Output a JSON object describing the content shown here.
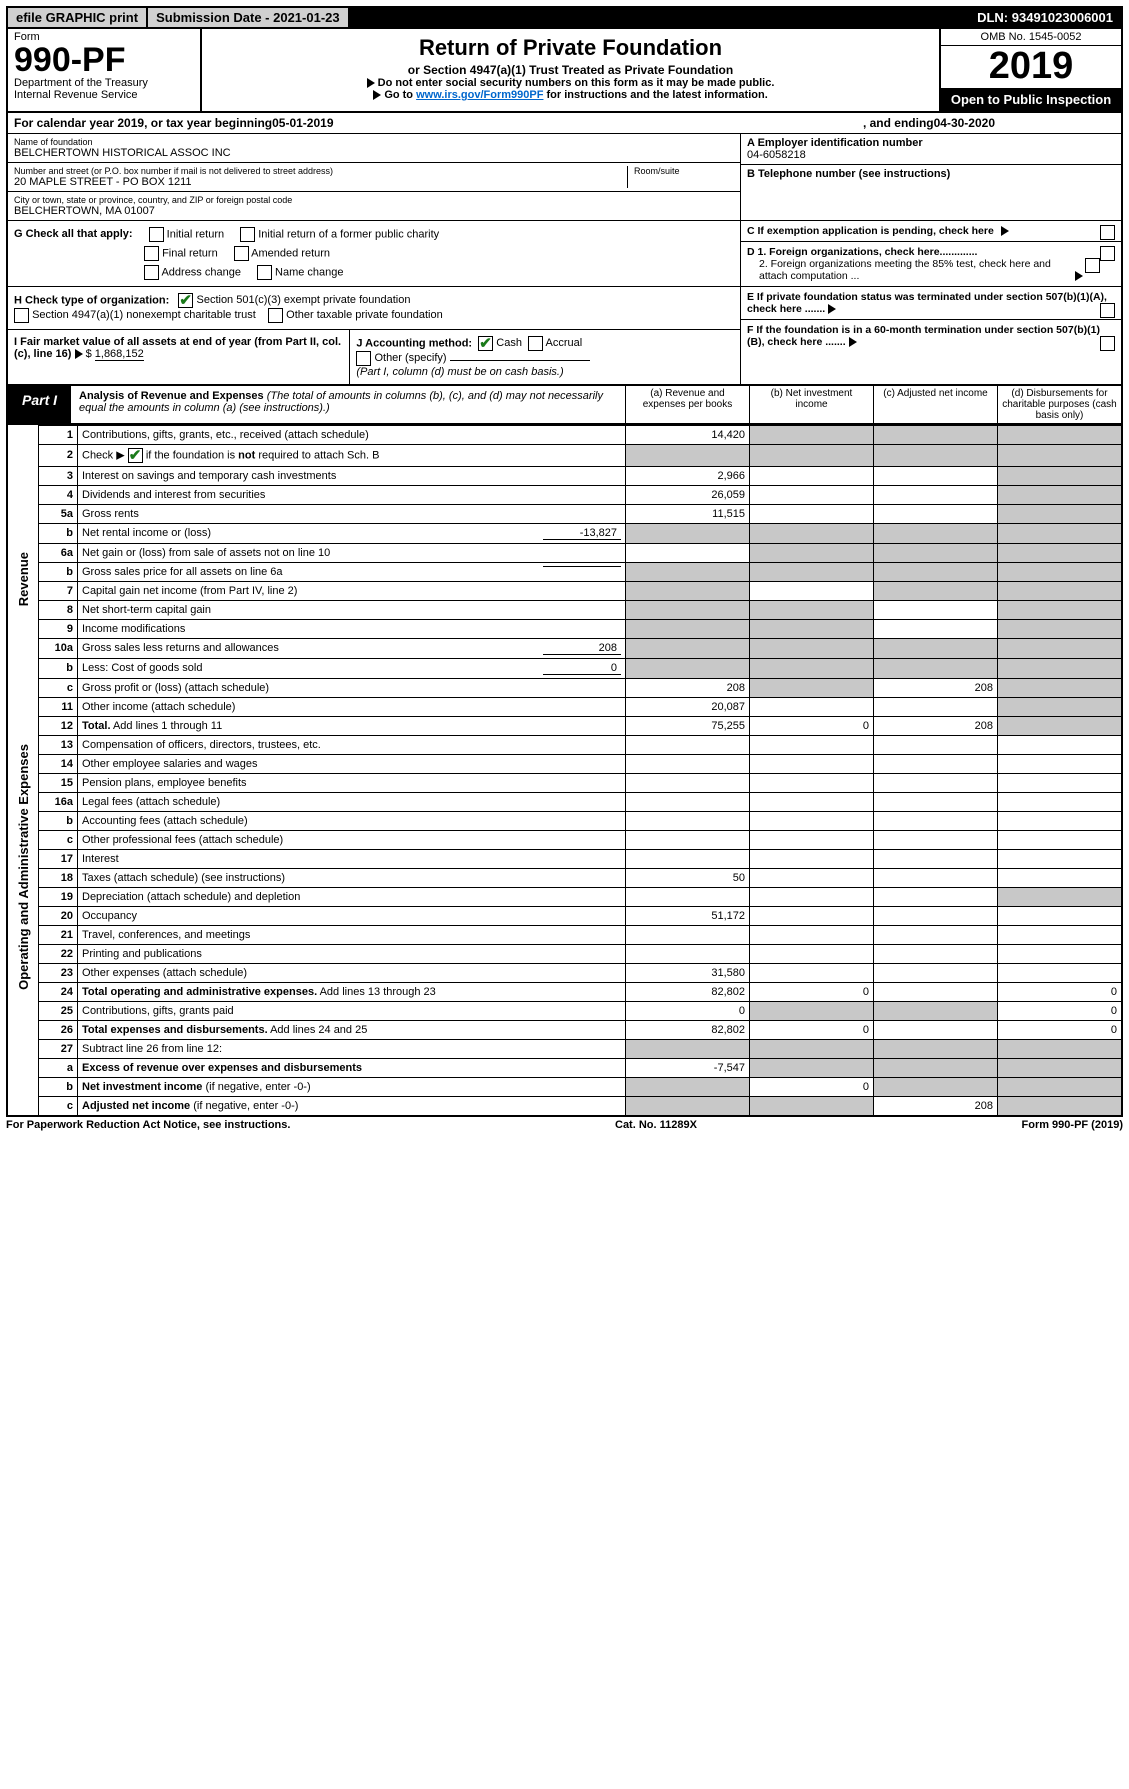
{
  "top": {
    "efile": "efile GRAPHIC print",
    "subdate_label": "Submission Date - ",
    "subdate": "2021-01-23",
    "dln_label": "DLN: ",
    "dln": "93491023006001"
  },
  "header": {
    "form_label": "Form",
    "form_num": "990-PF",
    "dept": "Department of the Treasury",
    "irs": "Internal Revenue Service",
    "title": "Return of Private Foundation",
    "subtitle": "or Section 4947(a)(1) Trust Treated as Private Foundation",
    "note1": "Do not enter social security numbers on this form as it may be made public.",
    "note2_pre": "Go to ",
    "note2_link": "www.irs.gov/Form990PF",
    "note2_post": " for instructions and the latest information.",
    "omb": "OMB No. 1545-0052",
    "year": "2019",
    "inspect": "Open to Public Inspection"
  },
  "calrow": {
    "pre": "For calendar year 2019, or tax year beginning ",
    "begin": "05-01-2019",
    "mid": ", and ending ",
    "end": "04-30-2020"
  },
  "info": {
    "name_lbl": "Name of foundation",
    "name": "BELCHERTOWN HISTORICAL ASSOC INC",
    "addr_lbl": "Number and street (or P.O. box number if mail is not delivered to street address)",
    "addr": "20 MAPLE STREET - PO BOX 1211",
    "room_lbl": "Room/suite",
    "city_lbl": "City or town, state or province, country, and ZIP or foreign postal code",
    "city": "BELCHERTOWN, MA  01007",
    "a_lbl": "A Employer identification number",
    "a_val": "04-6058218",
    "b_lbl": "B Telephone number (see instructions)",
    "c_lbl": "C If exemption application is pending, check here",
    "d1": "D 1. Foreign organizations, check here.............",
    "d2": "2. Foreign organizations meeting the 85% test, check here and attach computation ...",
    "e": "E  If private foundation status was terminated under section 507(b)(1)(A), check here .......",
    "f": "F  If the foundation is in a 60-month termination under section 507(b)(1)(B), check here ......."
  },
  "g": {
    "label": "G Check all that apply:",
    "opts": [
      "Initial return",
      "Initial return of a former public charity",
      "Final return",
      "Amended return",
      "Address change",
      "Name change"
    ]
  },
  "h": {
    "label": "H Check type of organization:",
    "o1": "Section 501(c)(3) exempt private foundation",
    "o2": "Section 4947(a)(1) nonexempt charitable trust",
    "o3": "Other taxable private foundation"
  },
  "i": {
    "label": "I Fair market value of all assets at end of year (from Part II, col. (c), line 16)",
    "val": "1,868,152"
  },
  "j": {
    "label": "J Accounting method:",
    "cash": "Cash",
    "accrual": "Accrual",
    "other": "Other (specify)",
    "note": "(Part I, column (d) must be on cash basis.)"
  },
  "part1": {
    "tag": "Part I",
    "title": "Analysis of Revenue and Expenses",
    "note": "(The total of amounts in columns (b), (c), and (d) may not necessarily equal the amounts in column (a) (see instructions).)",
    "col_a": "(a)   Revenue and expenses per books",
    "col_b": "(b)  Net investment income",
    "col_c": "(c)  Adjusted net income",
    "col_d": "(d)  Disbursements for charitable purposes (cash basis only)"
  },
  "side": {
    "rev": "Revenue",
    "exp": "Operating and Administrative Expenses"
  },
  "rows": {
    "r1": {
      "n": "1",
      "d": "Contributions, gifts, grants, etc., received (attach schedule)",
      "a": "14,420"
    },
    "r2": {
      "n": "2",
      "d": "if the foundation is <b>not</b> required to attach Sch. B",
      "pre": "Check ▶"
    },
    "r3": {
      "n": "3",
      "d": "Interest on savings and temporary cash investments",
      "a": "2,966"
    },
    "r4": {
      "n": "4",
      "d": "Dividends and interest from securities",
      "a": "26,059"
    },
    "r5a": {
      "n": "5a",
      "d": "Gross rents",
      "a": "11,515"
    },
    "r5b": {
      "n": "b",
      "d": "Net rental income or (loss)",
      "inline": "-13,827"
    },
    "r6a": {
      "n": "6a",
      "d": "Net gain or (loss) from sale of assets not on line 10"
    },
    "r6b": {
      "n": "b",
      "d": "Gross sales price for all assets on line 6a"
    },
    "r7": {
      "n": "7",
      "d": "Capital gain net income (from Part IV, line 2)"
    },
    "r8": {
      "n": "8",
      "d": "Net short-term capital gain"
    },
    "r9": {
      "n": "9",
      "d": "Income modifications"
    },
    "r10a": {
      "n": "10a",
      "d": "Gross sales less returns and allowances",
      "inline": "208"
    },
    "r10b": {
      "n": "b",
      "d": "Less: Cost of goods sold",
      "inline": "0"
    },
    "r10c": {
      "n": "c",
      "d": "Gross profit or (loss) (attach schedule)",
      "a": "208",
      "c": "208"
    },
    "r11": {
      "n": "11",
      "d": "Other income (attach schedule)",
      "a": "20,087"
    },
    "r12": {
      "n": "12",
      "d": "<b>Total.</b> Add lines 1 through 11",
      "a": "75,255",
      "b": "0",
      "c": "208"
    },
    "r13": {
      "n": "13",
      "d": "Compensation of officers, directors, trustees, etc."
    },
    "r14": {
      "n": "14",
      "d": "Other employee salaries and wages"
    },
    "r15": {
      "n": "15",
      "d": "Pension plans, employee benefits"
    },
    "r16a": {
      "n": "16a",
      "d": "Legal fees (attach schedule)"
    },
    "r16b": {
      "n": "b",
      "d": "Accounting fees (attach schedule)"
    },
    "r16c": {
      "n": "c",
      "d": "Other professional fees (attach schedule)"
    },
    "r17": {
      "n": "17",
      "d": "Interest"
    },
    "r18": {
      "n": "18",
      "d": "Taxes (attach schedule) (see instructions)",
      "a": "50"
    },
    "r19": {
      "n": "19",
      "d": "Depreciation (attach schedule) and depletion"
    },
    "r20": {
      "n": "20",
      "d": "Occupancy",
      "a": "51,172"
    },
    "r21": {
      "n": "21",
      "d": "Travel, conferences, and meetings"
    },
    "r22": {
      "n": "22",
      "d": "Printing and publications"
    },
    "r23": {
      "n": "23",
      "d": "Other expenses (attach schedule)",
      "a": "31,580"
    },
    "r24": {
      "n": "24",
      "d": "<b>Total operating and administrative expenses.</b> Add lines 13 through 23",
      "a": "82,802",
      "b": "0",
      "dd": "0"
    },
    "r25": {
      "n": "25",
      "d": "Contributions, gifts, grants paid",
      "a": "0",
      "dd": "0"
    },
    "r26": {
      "n": "26",
      "d": "<b>Total expenses and disbursements.</b> Add lines 24 and 25",
      "a": "82,802",
      "b": "0",
      "dd": "0"
    },
    "r27": {
      "n": "27",
      "d": "Subtract line 26 from line 12:"
    },
    "r27a": {
      "n": "a",
      "d": "<b>Excess of revenue over expenses and disbursements</b>",
      "a": "-7,547"
    },
    "r27b": {
      "n": "b",
      "d": "<b>Net investment income</b> (if negative, enter -0-)",
      "b": "0"
    },
    "r27c": {
      "n": "c",
      "d": "<b>Adjusted net income</b> (if negative, enter -0-)",
      "c": "208"
    }
  },
  "footer": {
    "left": "For Paperwork Reduction Act Notice, see instructions.",
    "mid": "Cat. No. 11289X",
    "right": "Form 990-PF (2019)"
  }
}
